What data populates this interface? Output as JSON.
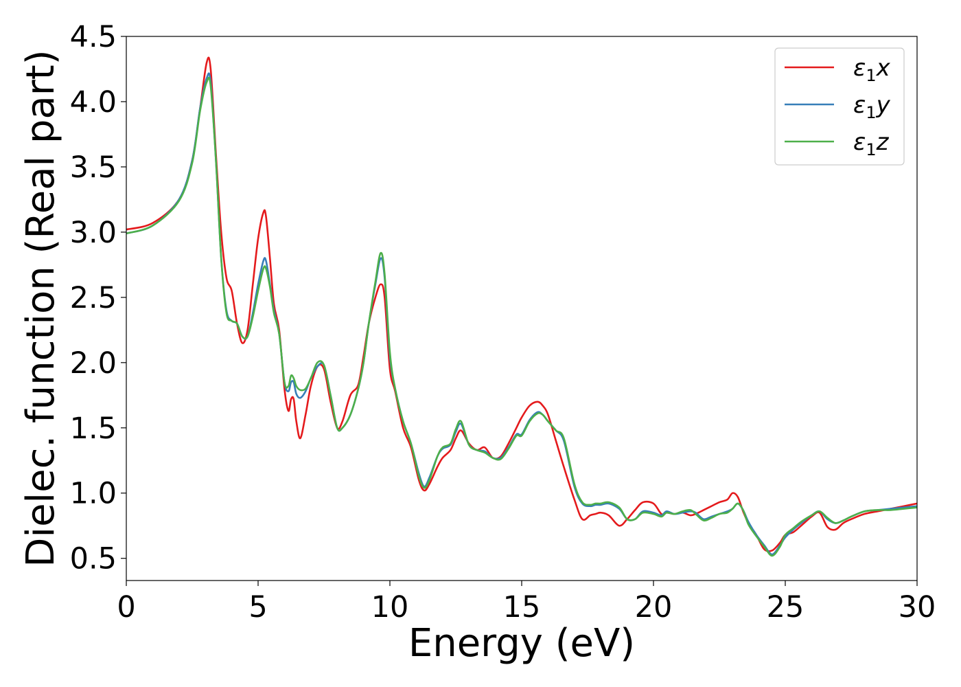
{
  "chart_data": {
    "type": "line",
    "xlabel": "Energy (eV)",
    "ylabel": "Dielec. function (Real part)",
    "xlim": [
      0,
      30
    ],
    "ylim": [
      0.33,
      4.5
    ],
    "xticks": [
      "0",
      "5",
      "10",
      "15",
      "20",
      "25",
      "30"
    ],
    "yticks": [
      "0.5",
      "1.0",
      "1.5",
      "2.0",
      "2.5",
      "3.0",
      "3.5",
      "4.0",
      "4.5"
    ],
    "legend_position": "top-right",
    "grid": false,
    "series": [
      {
        "name": "ε1x",
        "name_base": "ε",
        "name_sub": "1",
        "name_suffix": "x",
        "color": "#e41a1c",
        "x": [
          0,
          1,
          2,
          2.5,
          2.8,
          3.05,
          3.2,
          3.4,
          3.6,
          3.8,
          4.0,
          4.2,
          4.4,
          4.6,
          4.8,
          5.0,
          5.2,
          5.3,
          5.45,
          5.6,
          5.8,
          6.0,
          6.15,
          6.25,
          6.35,
          6.45,
          6.6,
          6.8,
          7.0,
          7.25,
          7.5,
          7.75,
          8.0,
          8.2,
          8.5,
          8.8,
          9.0,
          9.2,
          9.45,
          9.65,
          9.8,
          10.0,
          10.2,
          10.5,
          10.8,
          11.1,
          11.3,
          11.5,
          11.8,
          12.0,
          12.3,
          12.5,
          12.7,
          13.0,
          13.3,
          13.6,
          13.9,
          14.2,
          14.5,
          14.8,
          15.0,
          15.3,
          15.6,
          15.8,
          16.0,
          16.3,
          16.6,
          17.0,
          17.3,
          17.6,
          17.8,
          18.0,
          18.3,
          18.7,
          19.0,
          19.3,
          19.6,
          20.0,
          20.3,
          20.5,
          20.8,
          21.1,
          21.4,
          21.6,
          21.9,
          22.2,
          22.5,
          22.8,
          23.0,
          23.2,
          23.4,
          23.6,
          23.9,
          24.2,
          24.5,
          24.8,
          25.0,
          25.3,
          25.6,
          26.0,
          26.3,
          26.6,
          26.9,
          27.2,
          27.5,
          28.0,
          28.5,
          29.0,
          29.5,
          30.0
        ],
        "values": [
          3.02,
          3.07,
          3.25,
          3.55,
          3.95,
          4.3,
          4.25,
          3.6,
          3.0,
          2.65,
          2.55,
          2.3,
          2.15,
          2.25,
          2.6,
          2.95,
          3.15,
          3.12,
          2.8,
          2.45,
          2.25,
          1.8,
          1.63,
          1.72,
          1.72,
          1.55,
          1.42,
          1.6,
          1.82,
          1.97,
          1.95,
          1.7,
          1.5,
          1.55,
          1.75,
          1.83,
          2.05,
          2.3,
          2.5,
          2.6,
          2.5,
          1.95,
          1.78,
          1.5,
          1.35,
          1.1,
          1.02,
          1.07,
          1.2,
          1.27,
          1.33,
          1.42,
          1.48,
          1.38,
          1.33,
          1.35,
          1.27,
          1.28,
          1.38,
          1.5,
          1.58,
          1.67,
          1.7,
          1.67,
          1.6,
          1.4,
          1.2,
          0.95,
          0.8,
          0.83,
          0.84,
          0.85,
          0.83,
          0.75,
          0.8,
          0.87,
          0.93,
          0.92,
          0.84,
          0.85,
          0.84,
          0.85,
          0.83,
          0.84,
          0.87,
          0.9,
          0.93,
          0.95,
          1.0,
          0.97,
          0.86,
          0.77,
          0.68,
          0.57,
          0.56,
          0.62,
          0.68,
          0.7,
          0.75,
          0.82,
          0.85,
          0.74,
          0.72,
          0.77,
          0.8,
          0.84,
          0.86,
          0.88,
          0.9,
          0.92
        ]
      },
      {
        "name": "ε1y",
        "name_base": "ε",
        "name_sub": "1",
        "name_suffix": "y",
        "color": "#377eb8",
        "x": [
          0,
          1,
          2,
          2.5,
          2.8,
          3.05,
          3.2,
          3.4,
          3.6,
          3.8,
          4.0,
          4.2,
          4.4,
          4.6,
          4.8,
          5.0,
          5.2,
          5.3,
          5.45,
          5.6,
          5.8,
          6.0,
          6.15,
          6.25,
          6.35,
          6.45,
          6.6,
          6.8,
          7.0,
          7.25,
          7.5,
          7.75,
          8.0,
          8.2,
          8.5,
          8.8,
          9.0,
          9.2,
          9.45,
          9.65,
          9.8,
          10.0,
          10.2,
          10.5,
          10.8,
          11.1,
          11.3,
          11.5,
          11.8,
          12.0,
          12.3,
          12.5,
          12.7,
          13.0,
          13.3,
          13.6,
          13.9,
          14.2,
          14.5,
          14.8,
          15.0,
          15.3,
          15.6,
          15.8,
          16.0,
          16.3,
          16.6,
          17.0,
          17.3,
          17.6,
          17.8,
          18.0,
          18.3,
          18.7,
          19.0,
          19.3,
          19.6,
          20.0,
          20.3,
          20.5,
          20.8,
          21.1,
          21.4,
          21.6,
          21.9,
          22.2,
          22.5,
          22.8,
          23.0,
          23.2,
          23.4,
          23.6,
          23.9,
          24.2,
          24.5,
          24.8,
          25.0,
          25.3,
          25.6,
          26.0,
          26.3,
          26.6,
          26.9,
          27.2,
          27.5,
          28.0,
          28.5,
          29.0,
          29.5,
          30.0
        ],
        "values": [
          2.99,
          3.05,
          3.25,
          3.55,
          3.95,
          4.18,
          4.15,
          3.55,
          2.8,
          2.4,
          2.32,
          2.3,
          2.2,
          2.2,
          2.38,
          2.6,
          2.78,
          2.78,
          2.6,
          2.4,
          2.22,
          1.85,
          1.78,
          1.85,
          1.85,
          1.76,
          1.73,
          1.78,
          1.88,
          1.97,
          1.98,
          1.75,
          1.5,
          1.5,
          1.6,
          1.8,
          2.0,
          2.3,
          2.6,
          2.8,
          2.65,
          2.05,
          1.8,
          1.55,
          1.38,
          1.15,
          1.05,
          1.12,
          1.28,
          1.34,
          1.37,
          1.47,
          1.53,
          1.37,
          1.33,
          1.32,
          1.27,
          1.27,
          1.35,
          1.45,
          1.45,
          1.56,
          1.62,
          1.6,
          1.55,
          1.48,
          1.4,
          1.05,
          0.92,
          0.9,
          0.91,
          0.91,
          0.92,
          0.88,
          0.8,
          0.8,
          0.86,
          0.85,
          0.83,
          0.86,
          0.84,
          0.85,
          0.86,
          0.85,
          0.8,
          0.82,
          0.84,
          0.86,
          0.88,
          0.92,
          0.87,
          0.78,
          0.68,
          0.6,
          0.53,
          0.6,
          0.66,
          0.72,
          0.77,
          0.83,
          0.86,
          0.8,
          0.77,
          0.79,
          0.82,
          0.86,
          0.87,
          0.88,
          0.89,
          0.9
        ]
      },
      {
        "name": "ε1z",
        "name_base": "ε",
        "name_sub": "1",
        "name_suffix": "z",
        "color": "#4daf4a",
        "x": [
          0,
          1,
          2,
          2.5,
          2.8,
          3.05,
          3.2,
          3.4,
          3.6,
          3.8,
          4.0,
          4.2,
          4.4,
          4.6,
          4.8,
          5.0,
          5.2,
          5.3,
          5.45,
          5.6,
          5.8,
          6.0,
          6.15,
          6.25,
          6.35,
          6.45,
          6.6,
          6.8,
          7.0,
          7.25,
          7.5,
          7.75,
          8.0,
          8.2,
          8.5,
          8.8,
          9.0,
          9.2,
          9.45,
          9.65,
          9.8,
          10.0,
          10.2,
          10.5,
          10.8,
          11.1,
          11.3,
          11.5,
          11.8,
          12.0,
          12.3,
          12.5,
          12.7,
          13.0,
          13.3,
          13.6,
          13.9,
          14.2,
          14.5,
          14.8,
          15.0,
          15.3,
          15.6,
          15.8,
          16.0,
          16.3,
          16.6,
          17.0,
          17.3,
          17.6,
          17.8,
          18.0,
          18.3,
          18.7,
          19.0,
          19.3,
          19.6,
          20.0,
          20.3,
          20.5,
          20.8,
          21.1,
          21.4,
          21.6,
          21.9,
          22.2,
          22.5,
          22.8,
          23.0,
          23.2,
          23.4,
          23.6,
          23.9,
          24.2,
          24.5,
          24.8,
          25.0,
          25.3,
          25.6,
          26.0,
          26.3,
          26.6,
          26.9,
          27.2,
          27.5,
          28.0,
          28.5,
          29.0,
          29.5,
          30.0
        ],
        "values": [
          2.99,
          3.05,
          3.24,
          3.53,
          3.93,
          4.15,
          4.12,
          3.55,
          2.8,
          2.38,
          2.32,
          2.3,
          2.2,
          2.2,
          2.35,
          2.55,
          2.72,
          2.72,
          2.58,
          2.38,
          2.22,
          1.85,
          1.82,
          1.9,
          1.88,
          1.82,
          1.79,
          1.8,
          1.88,
          2.0,
          1.98,
          1.75,
          1.5,
          1.5,
          1.6,
          1.8,
          2.0,
          2.3,
          2.62,
          2.84,
          2.68,
          2.08,
          1.8,
          1.55,
          1.38,
          1.13,
          1.04,
          1.1,
          1.28,
          1.35,
          1.38,
          1.49,
          1.55,
          1.37,
          1.33,
          1.31,
          1.27,
          1.26,
          1.34,
          1.44,
          1.44,
          1.55,
          1.61,
          1.6,
          1.55,
          1.48,
          1.42,
          1.07,
          0.93,
          0.91,
          0.92,
          0.92,
          0.93,
          0.89,
          0.8,
          0.8,
          0.85,
          0.84,
          0.82,
          0.85,
          0.84,
          0.86,
          0.87,
          0.84,
          0.79,
          0.81,
          0.84,
          0.85,
          0.88,
          0.92,
          0.87,
          0.76,
          0.67,
          0.59,
          0.52,
          0.59,
          0.68,
          0.73,
          0.78,
          0.83,
          0.86,
          0.81,
          0.77,
          0.79,
          0.82,
          0.86,
          0.87,
          0.87,
          0.88,
          0.89
        ]
      }
    ]
  }
}
